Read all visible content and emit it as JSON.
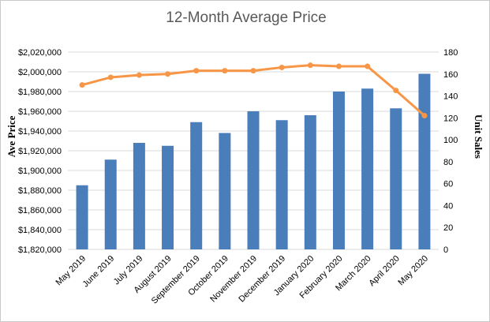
{
  "chart_data": {
    "type": "bar",
    "title": "12-Month Average Price",
    "ylabel": "Ave Price",
    "y2label": "Unit Sales",
    "categories": [
      "May 2019",
      "June 2019",
      "July 2019",
      "August 2019",
      "September 2019",
      "October 2019",
      "November 2019",
      "December 2019",
      "January 2020",
      "February 2020",
      "March 2020",
      "April 2020",
      "May 2020"
    ],
    "ylim": [
      1820000,
      2020000
    ],
    "y_ticks": [
      "$1,820,000",
      "$1,840,000",
      "$1,860,000",
      "$1,880,000",
      "$1,900,000",
      "$1,920,000",
      "$1,940,000",
      "$1,960,000",
      "$1,980,000",
      "$2,000,000",
      "$2,020,000"
    ],
    "y2lim": [
      0,
      180
    ],
    "y2_ticks": [
      "0",
      "20",
      "40",
      "60",
      "80",
      "100",
      "120",
      "140",
      "160",
      "180"
    ],
    "grid": true,
    "legend": "none",
    "series": [
      {
        "type": "bar",
        "axis": "left",
        "color": "#4a7ebb",
        "values": [
          1885000,
          1911000,
          1928000,
          1925000,
          1949000,
          1938000,
          1960000,
          1951000,
          1956000,
          1980000,
          1983000,
          1963000,
          1998000
        ]
      },
      {
        "type": "line",
        "axis": "right",
        "color": "#f79646",
        "values": [
          150,
          157,
          159,
          160,
          163,
          163,
          163,
          166,
          168,
          167,
          167,
          145,
          122
        ]
      }
    ]
  }
}
